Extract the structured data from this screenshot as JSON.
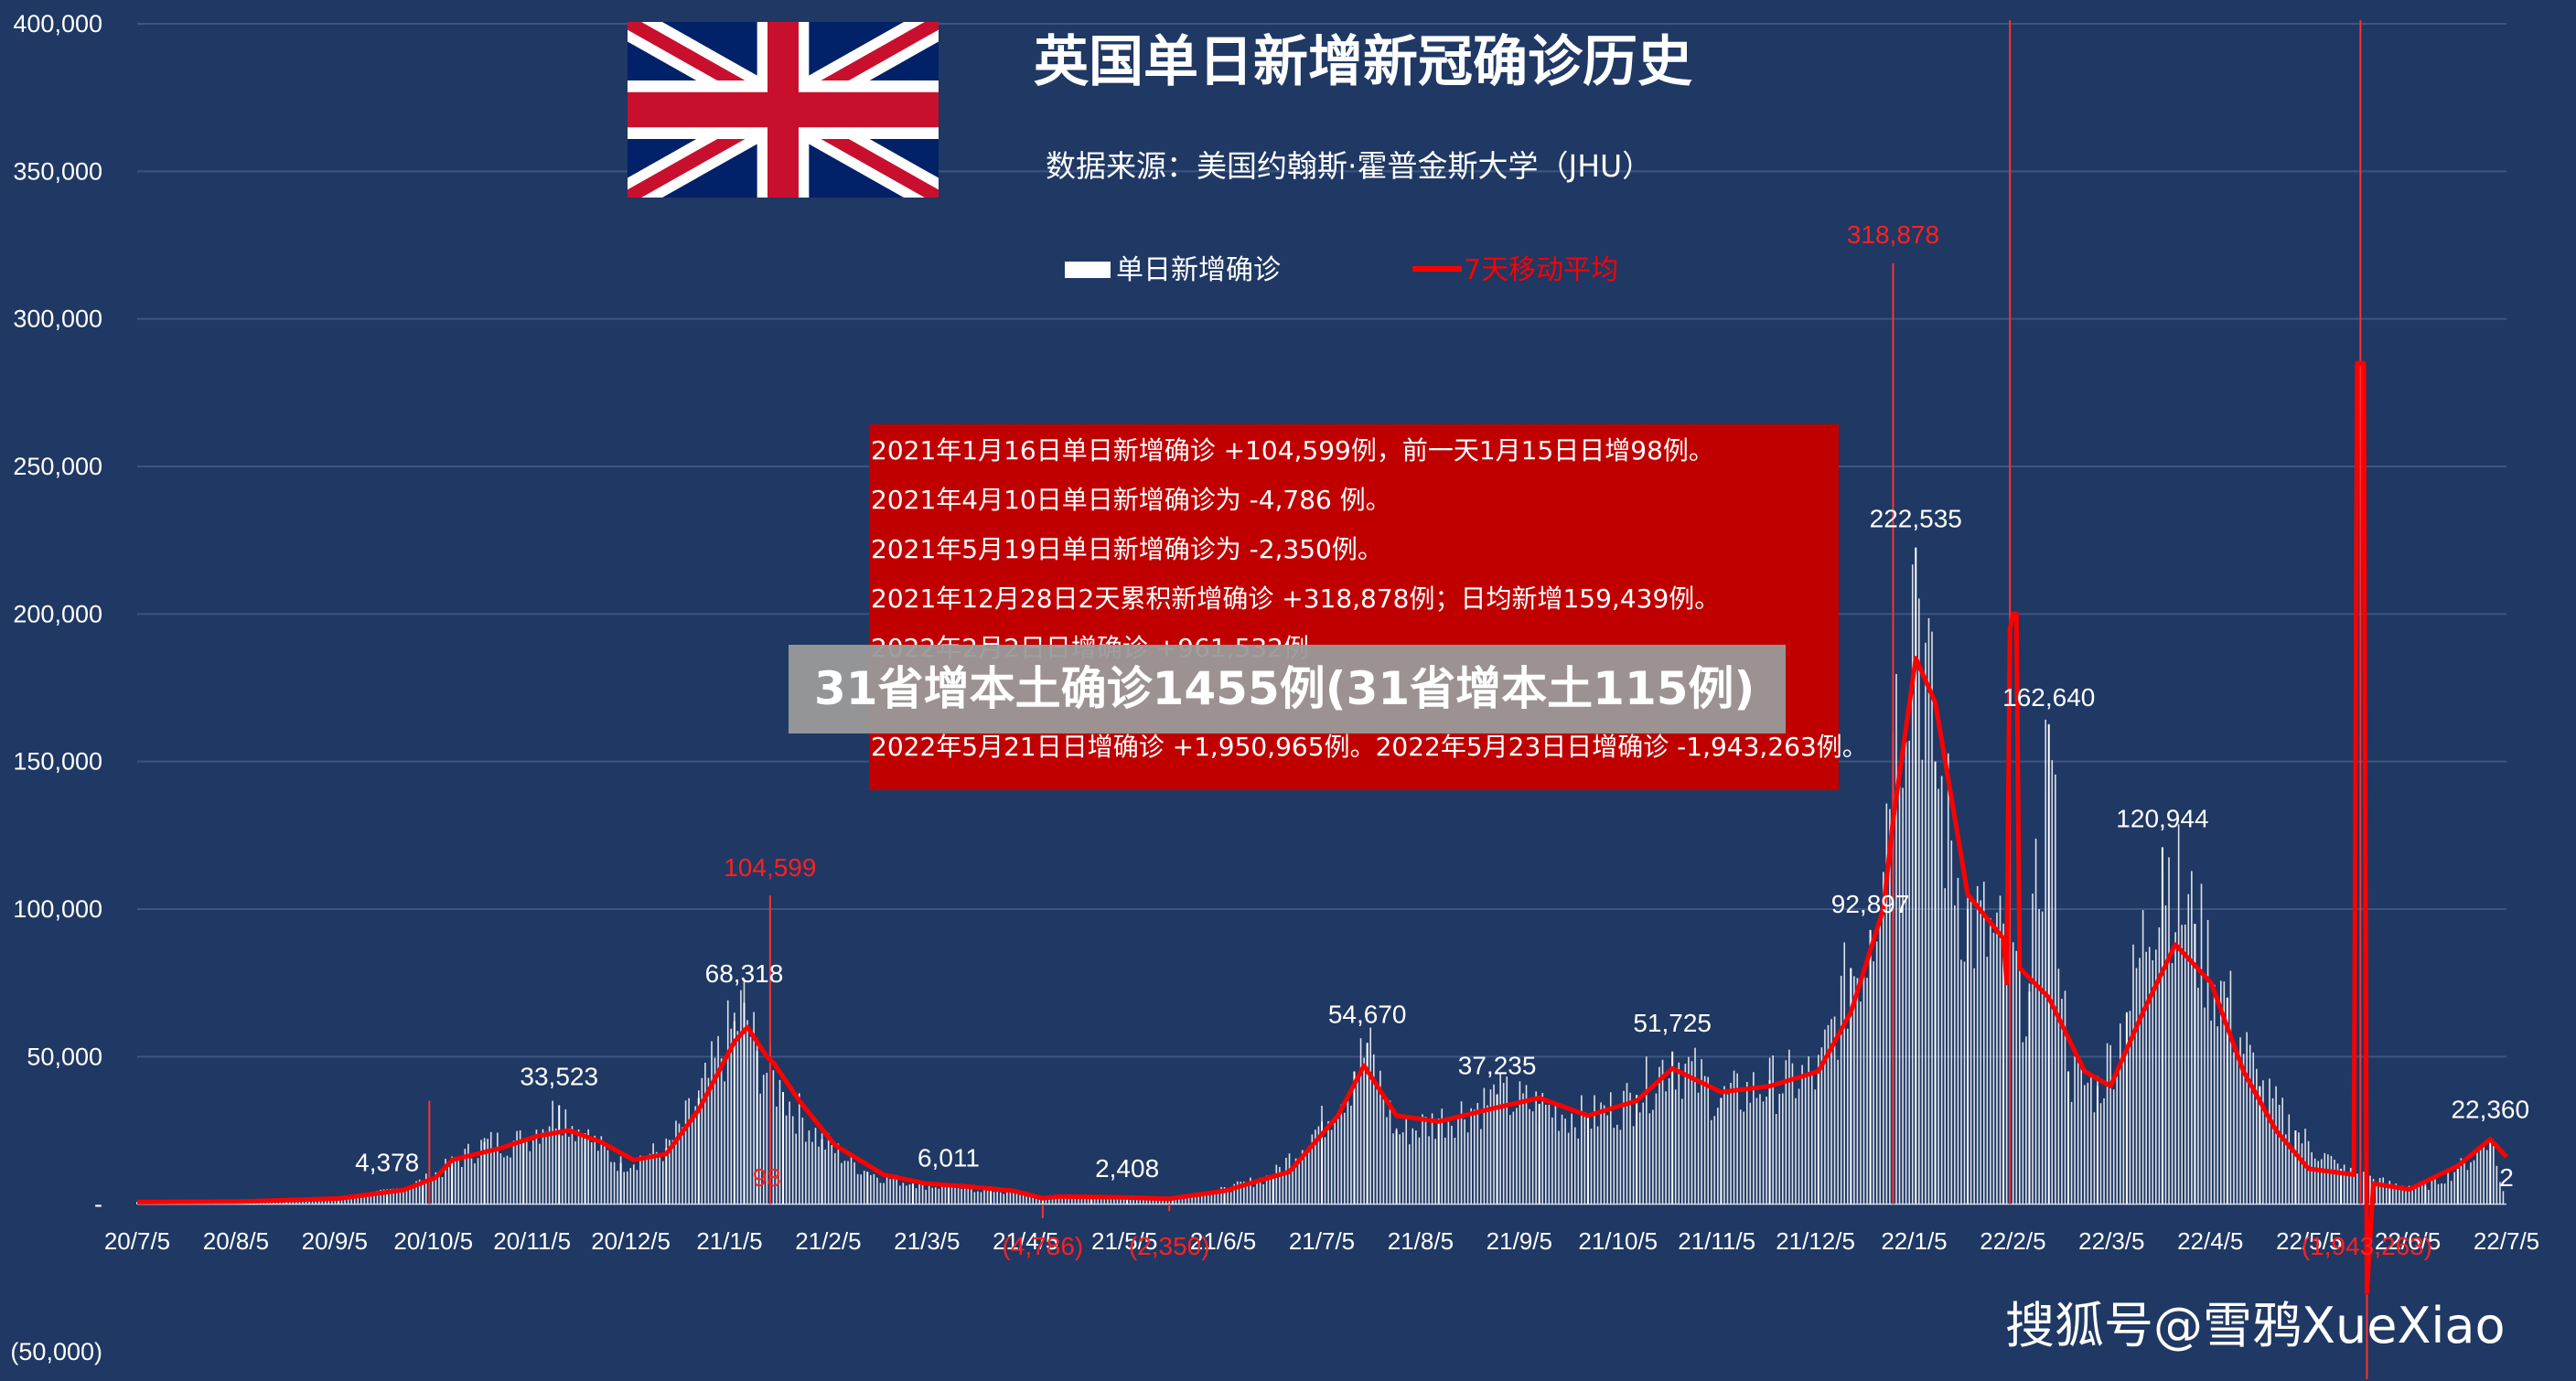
{
  "chart_data": {
    "type": "bar",
    "title": "英国单日新增新冠确诊历史",
    "subtitle": "数据来源：美国约翰斯·霍普金斯大学（JHU）",
    "legend": [
      {
        "name": "单日新增确诊",
        "color": "#ffffff",
        "placement": "top-center"
      },
      {
        "name": "7天移动平均",
        "color": "#ff0000",
        "placement": "top-center"
      }
    ],
    "ylim": [
      -50000,
      400000
    ],
    "yticks": [
      {
        "value": 400000,
        "label": "400,000"
      },
      {
        "value": 350000,
        "label": "350,000"
      },
      {
        "value": 300000,
        "label": "300,000"
      },
      {
        "value": 250000,
        "label": "250,000"
      },
      {
        "value": 200000,
        "label": "200,000"
      },
      {
        "value": 150000,
        "label": "150,000"
      },
      {
        "value": 100000,
        "label": "100,000"
      },
      {
        "value": 50000,
        "label": "50,000"
      },
      {
        "value": 0,
        "label": "-"
      },
      {
        "value": -50000,
        "label": "(50,000)"
      }
    ],
    "x_start": "2020-07-05",
    "x_end": "2022-07-05",
    "xticks": [
      "20/7/5",
      "20/8/5",
      "20/9/5",
      "20/10/5",
      "20/11/5",
      "20/12/5",
      "21/1/5",
      "21/2/5",
      "21/3/5",
      "21/4/5",
      "21/5/5",
      "21/6/5",
      "21/7/5",
      "21/8/5",
      "21/9/5",
      "21/10/5",
      "21/11/5",
      "21/12/5",
      "22/1/5",
      "22/2/5",
      "22/3/5",
      "22/4/5",
      "22/5/5",
      "22/6/5",
      "22/7/5"
    ],
    "grid": true,
    "daily_series": {
      "name": "单日新增确诊",
      "points": [
        [
          "2020-07-05",
          700
        ],
        [
          "2020-07-20",
          700
        ],
        [
          "2020-08-05",
          900
        ],
        [
          "2020-08-20",
          1100
        ],
        [
          "2020-09-05",
          2000
        ],
        [
          "2020-09-20",
          4378
        ],
        [
          "2020-10-01",
          8000
        ],
        [
          "2020-10-10",
          14000
        ],
        [
          "2020-10-20",
          21000
        ],
        [
          "2020-11-01",
          22000
        ],
        [
          "2020-11-12",
          33523
        ],
        [
          "2020-11-20",
          24000
        ],
        [
          "2020-12-01",
          14000
        ],
        [
          "2020-12-15",
          19000
        ],
        [
          "2020-12-25",
          36000
        ],
        [
          "2021-01-05",
          62000
        ],
        [
          "2021-01-08",
          68318
        ],
        [
          "2021-01-12",
          52000
        ],
        [
          "2021-01-20",
          38000
        ],
        [
          "2021-02-01",
          22000
        ],
        [
          "2021-02-15",
          11000
        ],
        [
          "2021-03-01",
          7000
        ],
        [
          "2021-03-12",
          6011
        ],
        [
          "2021-03-25",
          5000
        ],
        [
          "2021-04-10",
          2500
        ],
        [
          "2021-04-25",
          2400
        ],
        [
          "2021-05-06",
          2408
        ],
        [
          "2021-05-20",
          2500
        ],
        [
          "2021-06-05",
          5000
        ],
        [
          "2021-06-20",
          10000
        ],
        [
          "2021-07-05",
          28000
        ],
        [
          "2021-07-15",
          45000
        ],
        [
          "2021-07-19",
          54670
        ],
        [
          "2021-07-28",
          25000
        ],
        [
          "2021-08-10",
          29000
        ],
        [
          "2021-08-28",
          37235
        ],
        [
          "2021-09-10",
          34000
        ],
        [
          "2021-09-25",
          30000
        ],
        [
          "2021-10-10",
          37000
        ],
        [
          "2021-10-21",
          51725
        ],
        [
          "2021-11-05",
          36000
        ],
        [
          "2021-11-20",
          42000
        ],
        [
          "2021-12-05",
          45000
        ],
        [
          "2021-12-15",
          80000
        ],
        [
          "2021-12-21",
          92897
        ],
        [
          "2021-12-28",
          160000
        ],
        [
          "2022-01-04",
          222535
        ],
        [
          "2022-01-10",
          150000
        ],
        [
          "2022-01-20",
          100000
        ],
        [
          "2022-01-31",
          88000
        ],
        [
          "2022-02-08",
          72000
        ],
        [
          "2022-02-14",
          162640
        ],
        [
          "2022-02-20",
          45000
        ],
        [
          "2022-03-01",
          40000
        ],
        [
          "2022-03-10",
          65000
        ],
        [
          "2022-03-21",
          120944
        ],
        [
          "2022-03-31",
          95000
        ],
        [
          "2022-04-10",
          70000
        ],
        [
          "2022-04-20",
          40000
        ],
        [
          "2022-05-01",
          25000
        ],
        [
          "2022-05-15",
          12000
        ],
        [
          "2022-05-30",
          7000
        ],
        [
          "2022-06-10",
          6000
        ],
        [
          "2022-06-20",
          12000
        ],
        [
          "2022-06-30",
          22360
        ],
        [
          "2022-07-05",
          2
        ]
      ],
      "spikes": [
        [
          "2020-10-03",
          35000
        ],
        [
          "2021-01-16",
          104599
        ],
        [
          "2021-12-28",
          318878
        ],
        [
          "2022-02-02",
          961532
        ],
        [
          "2022-05-21",
          1950965
        ]
      ],
      "negatives": [
        [
          "2021-04-10",
          -4786
        ],
        [
          "2021-05-19",
          -2350
        ],
        [
          "2022-05-23",
          -1943263
        ]
      ]
    },
    "ma7_series": {
      "name": "7天移动平均",
      "points": [
        [
          "2020-07-05",
          700
        ],
        [
          "2020-08-05",
          850
        ],
        [
          "2020-09-05",
          1900
        ],
        [
          "2020-09-25",
          4800
        ],
        [
          "2020-10-05",
          9000
        ],
        [
          "2020-10-10",
          15000
        ],
        [
          "2020-10-25",
          19000
        ],
        [
          "2020-11-05",
          23000
        ],
        [
          "2020-11-15",
          25000
        ],
        [
          "2020-11-25",
          21000
        ],
        [
          "2020-12-05",
          15000
        ],
        [
          "2020-12-15",
          17000
        ],
        [
          "2020-12-25",
          32000
        ],
        [
          "2021-01-05",
          55000
        ],
        [
          "2021-01-09",
          60000
        ],
        [
          "2021-01-15",
          50000
        ],
        [
          "2021-01-17",
          48000
        ],
        [
          "2021-01-25",
          35000
        ],
        [
          "2021-02-05",
          20000
        ],
        [
          "2021-02-20",
          10000
        ],
        [
          "2021-03-05",
          7000
        ],
        [
          "2021-03-20",
          5800
        ],
        [
          "2021-04-01",
          4500
        ],
        [
          "2021-04-10",
          2000
        ],
        [
          "2021-04-15",
          2600
        ],
        [
          "2021-05-05",
          2300
        ],
        [
          "2021-05-19",
          1800
        ],
        [
          "2021-05-22",
          2300
        ],
        [
          "2021-06-05",
          4500
        ],
        [
          "2021-06-25",
          11000
        ],
        [
          "2021-07-10",
          30000
        ],
        [
          "2021-07-18",
          47000
        ],
        [
          "2021-07-28",
          30000
        ],
        [
          "2021-08-10",
          28000
        ],
        [
          "2021-08-25",
          32000
        ],
        [
          "2021-09-10",
          36000
        ],
        [
          "2021-09-25",
          30000
        ],
        [
          "2021-10-10",
          35000
        ],
        [
          "2021-10-21",
          46000
        ],
        [
          "2021-11-05",
          38000
        ],
        [
          "2021-11-20",
          40000
        ],
        [
          "2021-12-05",
          45000
        ],
        [
          "2021-12-15",
          65000
        ],
        [
          "2021-12-25",
          100000
        ],
        [
          "2021-12-28",
          130000
        ],
        [
          "2022-01-04",
          185000
        ],
        [
          "2022-01-10",
          170000
        ],
        [
          "2022-01-20",
          105000
        ],
        [
          "2022-01-31",
          90000
        ],
        [
          "2022-02-01",
          75000
        ],
        [
          "2022-02-02",
          195000
        ],
        [
          "2022-02-03",
          200000
        ],
        [
          "2022-02-04",
          200000
        ],
        [
          "2022-02-05",
          80000
        ],
        [
          "2022-02-14",
          70000
        ],
        [
          "2022-02-25",
          45000
        ],
        [
          "2022-03-05",
          40000
        ],
        [
          "2022-03-15",
          65000
        ],
        [
          "2022-03-25",
          88000
        ],
        [
          "2022-04-05",
          75000
        ],
        [
          "2022-04-15",
          45000
        ],
        [
          "2022-04-25",
          25000
        ],
        [
          "2022-05-05",
          12000
        ],
        [
          "2022-05-19",
          10000
        ],
        [
          "2022-05-20",
          285000
        ],
        [
          "2022-05-22",
          285000
        ],
        [
          "2022-05-23",
          -30000
        ],
        [
          "2022-05-25",
          7000
        ],
        [
          "2022-06-05",
          5000
        ],
        [
          "2022-06-20",
          13000
        ],
        [
          "2022-06-30",
          22000
        ],
        [
          "2022-07-05",
          16000
        ]
      ]
    },
    "data_labels": [
      {
        "x": "2020-09-20",
        "y": 4378,
        "label": "4,378",
        "color": "white"
      },
      {
        "x": "2020-11-12",
        "y": 33523,
        "label": "33,523",
        "color": "white"
      },
      {
        "x": "2021-01-08",
        "y": 68318,
        "label": "68,318",
        "color": "white"
      },
      {
        "x": "2021-01-16",
        "y": 104599,
        "label": "104,599",
        "color": "red"
      },
      {
        "x": "2021-01-15",
        "y": 98,
        "label": "98",
        "color": "red"
      },
      {
        "x": "2021-03-12",
        "y": 6011,
        "label": "6,011",
        "color": "white"
      },
      {
        "x": "2021-05-06",
        "y": 2408,
        "label": "2,408",
        "color": "white"
      },
      {
        "x": "2021-04-10",
        "y": -4786,
        "label": "(4,786)",
        "color": "red"
      },
      {
        "x": "2021-05-19",
        "y": -2350,
        "label": "(2,350)",
        "color": "red"
      },
      {
        "x": "2021-07-19",
        "y": 54670,
        "label": "54,670",
        "color": "white"
      },
      {
        "x": "2021-08-28",
        "y": 37235,
        "label": "37,235",
        "color": "white"
      },
      {
        "x": "2021-10-21",
        "y": 51725,
        "label": "51,725",
        "color": "white"
      },
      {
        "x": "2021-12-21",
        "y": 92897,
        "label": "92,897",
        "color": "white"
      },
      {
        "x": "2021-12-28",
        "y": 318878,
        "label": "318,878",
        "color": "red"
      },
      {
        "x": "2022-01-04",
        "y": 222535,
        "label": "222,535",
        "color": "white"
      },
      {
        "x": "2022-02-14",
        "y": 162640,
        "label": "162,640",
        "color": "white"
      },
      {
        "x": "2022-03-21",
        "y": 120944,
        "label": "120,944",
        "color": "white"
      },
      {
        "x": "2022-05-23",
        "y": -1943263,
        "label": "(1,943,263)",
        "color": "red"
      },
      {
        "x": "2022-06-30",
        "y": 22360,
        "label": "22,360",
        "color": "white"
      },
      {
        "x": "2022-07-05",
        "y": 2,
        "label": "2",
        "color": "white"
      }
    ],
    "annotations": [
      "2021年1月16日单日新增确诊 +104,599例，前一天1月15日日增98例。",
      "2021年4月10日单日新增确诊为 -4,786 例。",
      "2021年5月19日单日新增确诊为 -2,350例。",
      "2021年12月28日2天累积新增确诊 +318,878例；日均新增159,439例。",
      "2022年2月2日日增确诊 +961,532例",
      "",
      "2022年5月21日日增确诊 +1,950,965例。2022年5月23日日增确诊 -1,943,263例。"
    ]
  },
  "colors": {
    "background": "#1f3864",
    "grid": "#3c5581",
    "bars": "#ffffff",
    "moving_average": "#ff0000",
    "note_box": "#c00000",
    "banner": "#9a9a9a"
  },
  "flag_icon": "uk-flag-icon",
  "banner": {
    "text": "31省增本土确诊1455例(31省增本土115例)"
  },
  "watermark": {
    "text": "搜狐号@雪鸦XueXiao"
  }
}
